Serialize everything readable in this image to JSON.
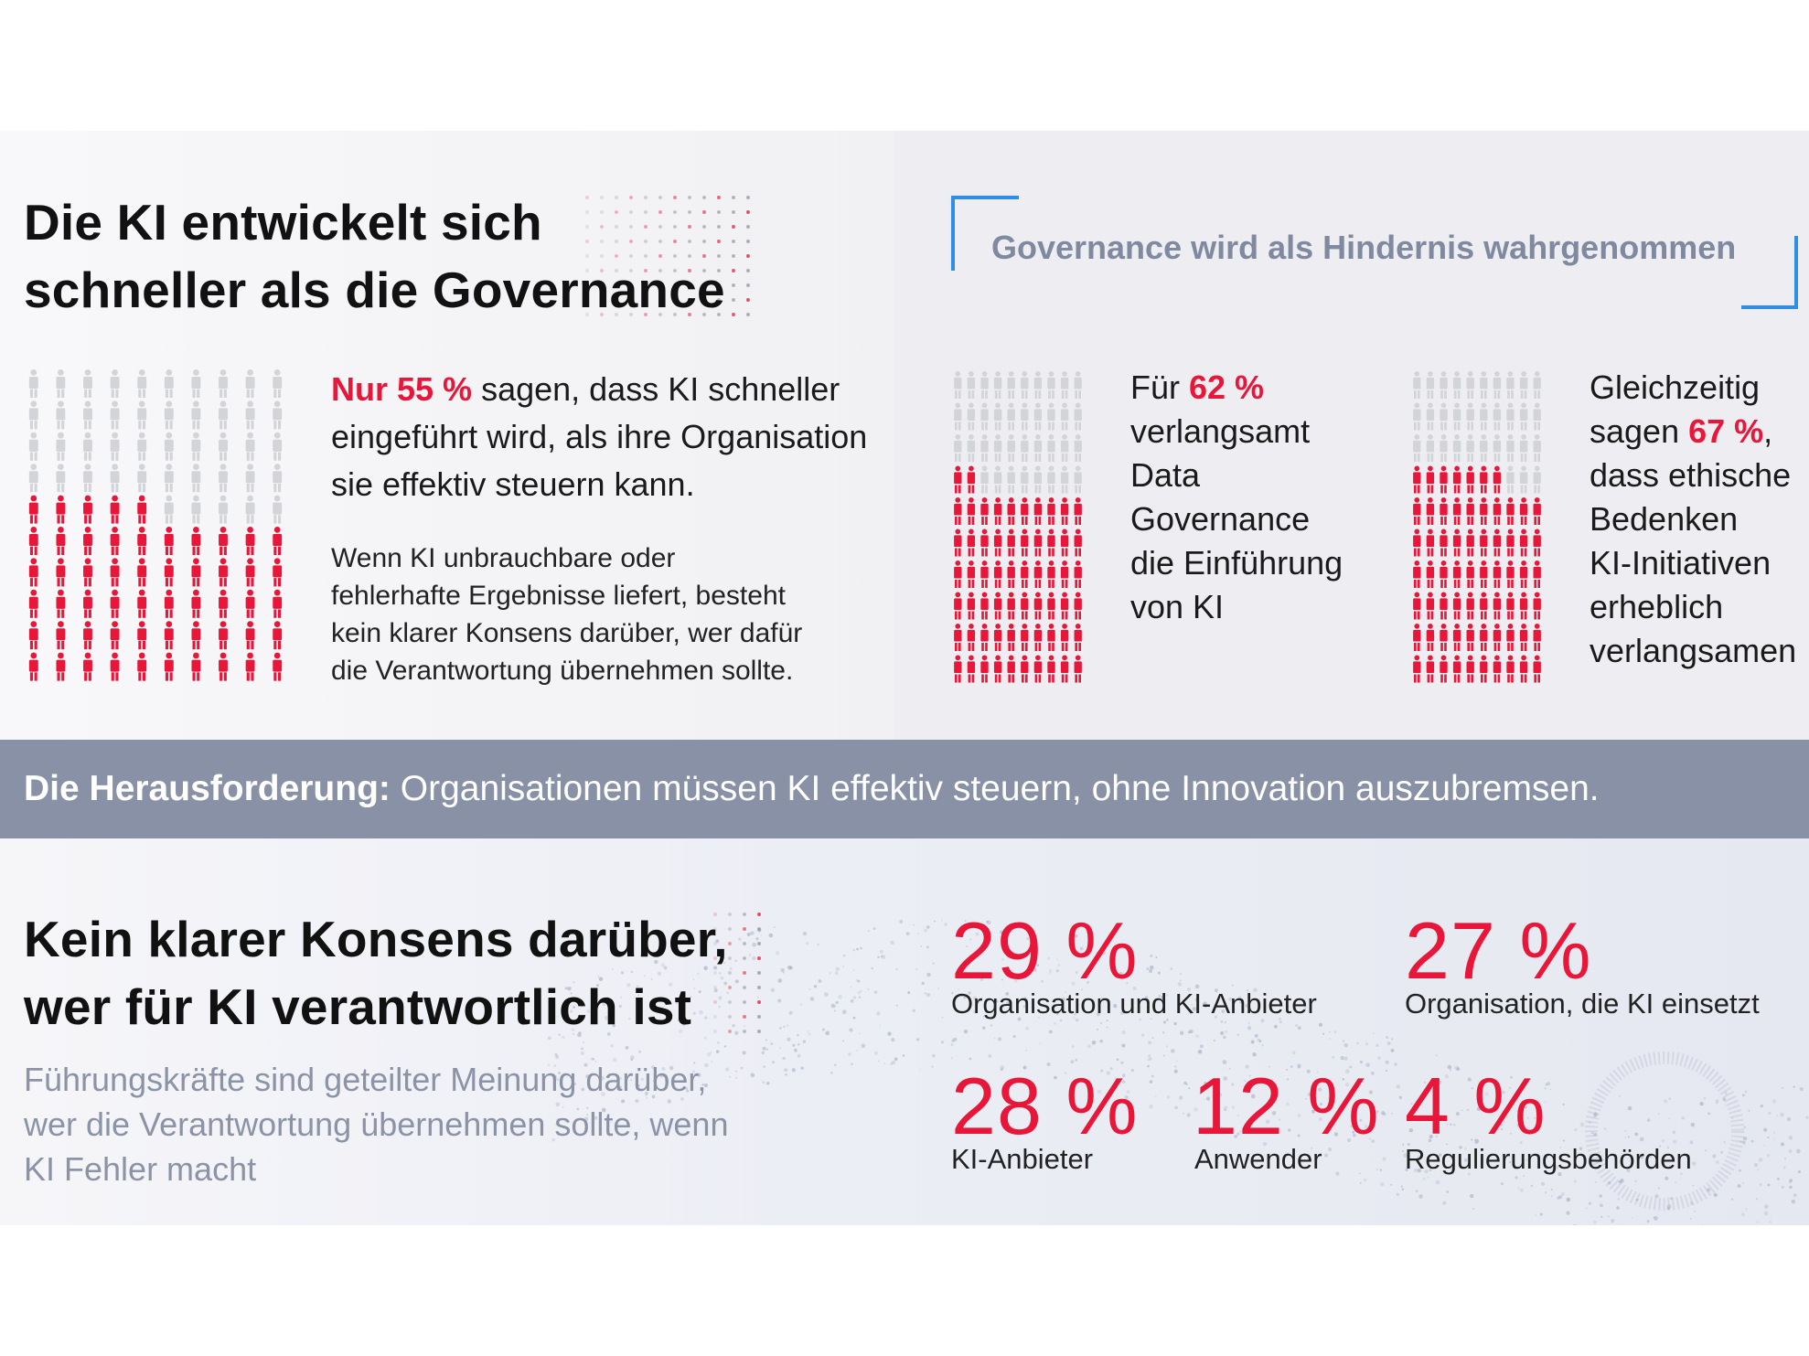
{
  "section1": {
    "title_lines": [
      "Die KI entwickelt sich",
      "schneller als die Governance"
    ],
    "stat_pct": "Nur 55 %",
    "stat_rest_line1": " sagen, dass KI schneller",
    "stat_lines": [
      "eingeführt wird, als ihre Organisation",
      "sie effektiv steuern kann."
    ],
    "sub_lines": [
      "Wenn KI unbrauchbare oder",
      "fehlerhafte Ergebnisse liefert, besteht",
      "kein klarer Konsens darüber, wer dafür",
      "die Verantwortung übernehmen sollte."
    ]
  },
  "section2": {
    "title": "Governance wird als Hindernis wahrgenommen",
    "stat_a": {
      "prefix": "Für ",
      "pct": "62 %",
      "lines": [
        "verlangsamt",
        "Data",
        "Governance",
        "die Einführung",
        "von KI"
      ]
    },
    "stat_b": {
      "line1": "Gleichzeitig",
      "prefix": "sagen ",
      "pct": "67 %",
      "suffix": ",",
      "lines": [
        "dass ethische",
        "Bedenken",
        "KI-Initiativen",
        "erheblich",
        "verlangsamen"
      ]
    }
  },
  "banner": {
    "bold": "Die Herausforderung:",
    "text": " Organisationen müssen KI effektiv steuern, ohne Innovation auszubremsen."
  },
  "section3": {
    "title_lines": [
      "Kein klarer Konsens darüber,",
      "wer für KI verantwortlich ist"
    ],
    "sub_lines": [
      "Führungskräfte sind geteilter Meinung darüber,",
      "wer die Verantwortung übernehmen sollte, wenn",
      "KI Fehler macht"
    ],
    "stats": [
      {
        "pct": "29 %",
        "label": "Organisation und KI-Anbieter"
      },
      {
        "pct": "27 %",
        "label": "Organisation, die KI einsetzt"
      },
      {
        "pct": "28 %",
        "label": "KI-Anbieter"
      },
      {
        "pct": "12 %",
        "label": "Anwender"
      },
      {
        "pct": "4 %",
        "label": "Regulierungsbehörden"
      }
    ]
  },
  "colors": {
    "accent_red": "#e8173a",
    "icon_grey": "#d3d4d8",
    "frame_blue": "#2f8fe6",
    "banner_bg": "#8891a6"
  },
  "chart_data": [
    {
      "type": "pictogram",
      "title": "Die KI entwickelt sich schneller als die Governance",
      "total": 100,
      "highlighted": 55,
      "values": [
        55,
        45
      ],
      "categories": [
        "sagen, dass KI schneller eingeführt wird, als ihre Organisation sie effektiv steuern kann",
        ""
      ]
    },
    {
      "type": "pictogram",
      "title": "Governance wird als Hindernis wahrgenommen",
      "total": 100,
      "highlighted": 62,
      "values": [
        62,
        38
      ],
      "categories": [
        "verlangsamt Data Governance die Einführung von KI",
        ""
      ]
    },
    {
      "type": "pictogram",
      "title": "Governance wird als Hindernis wahrgenommen",
      "total": 100,
      "highlighted": 67,
      "values": [
        67,
        33
      ],
      "categories": [
        "dass ethische Bedenken KI-Initiativen erheblich verlangsamen",
        ""
      ]
    },
    {
      "type": "table",
      "title": "Kein klarer Konsens darüber, wer für KI verantwortlich ist",
      "categories": [
        "Organisation und KI-Anbieter",
        "Organisation, die KI einsetzt",
        "KI-Anbieter",
        "Anwender",
        "Regulierungsbehörden"
      ],
      "values": [
        29,
        27,
        28,
        12,
        4
      ],
      "unit": "%"
    }
  ]
}
